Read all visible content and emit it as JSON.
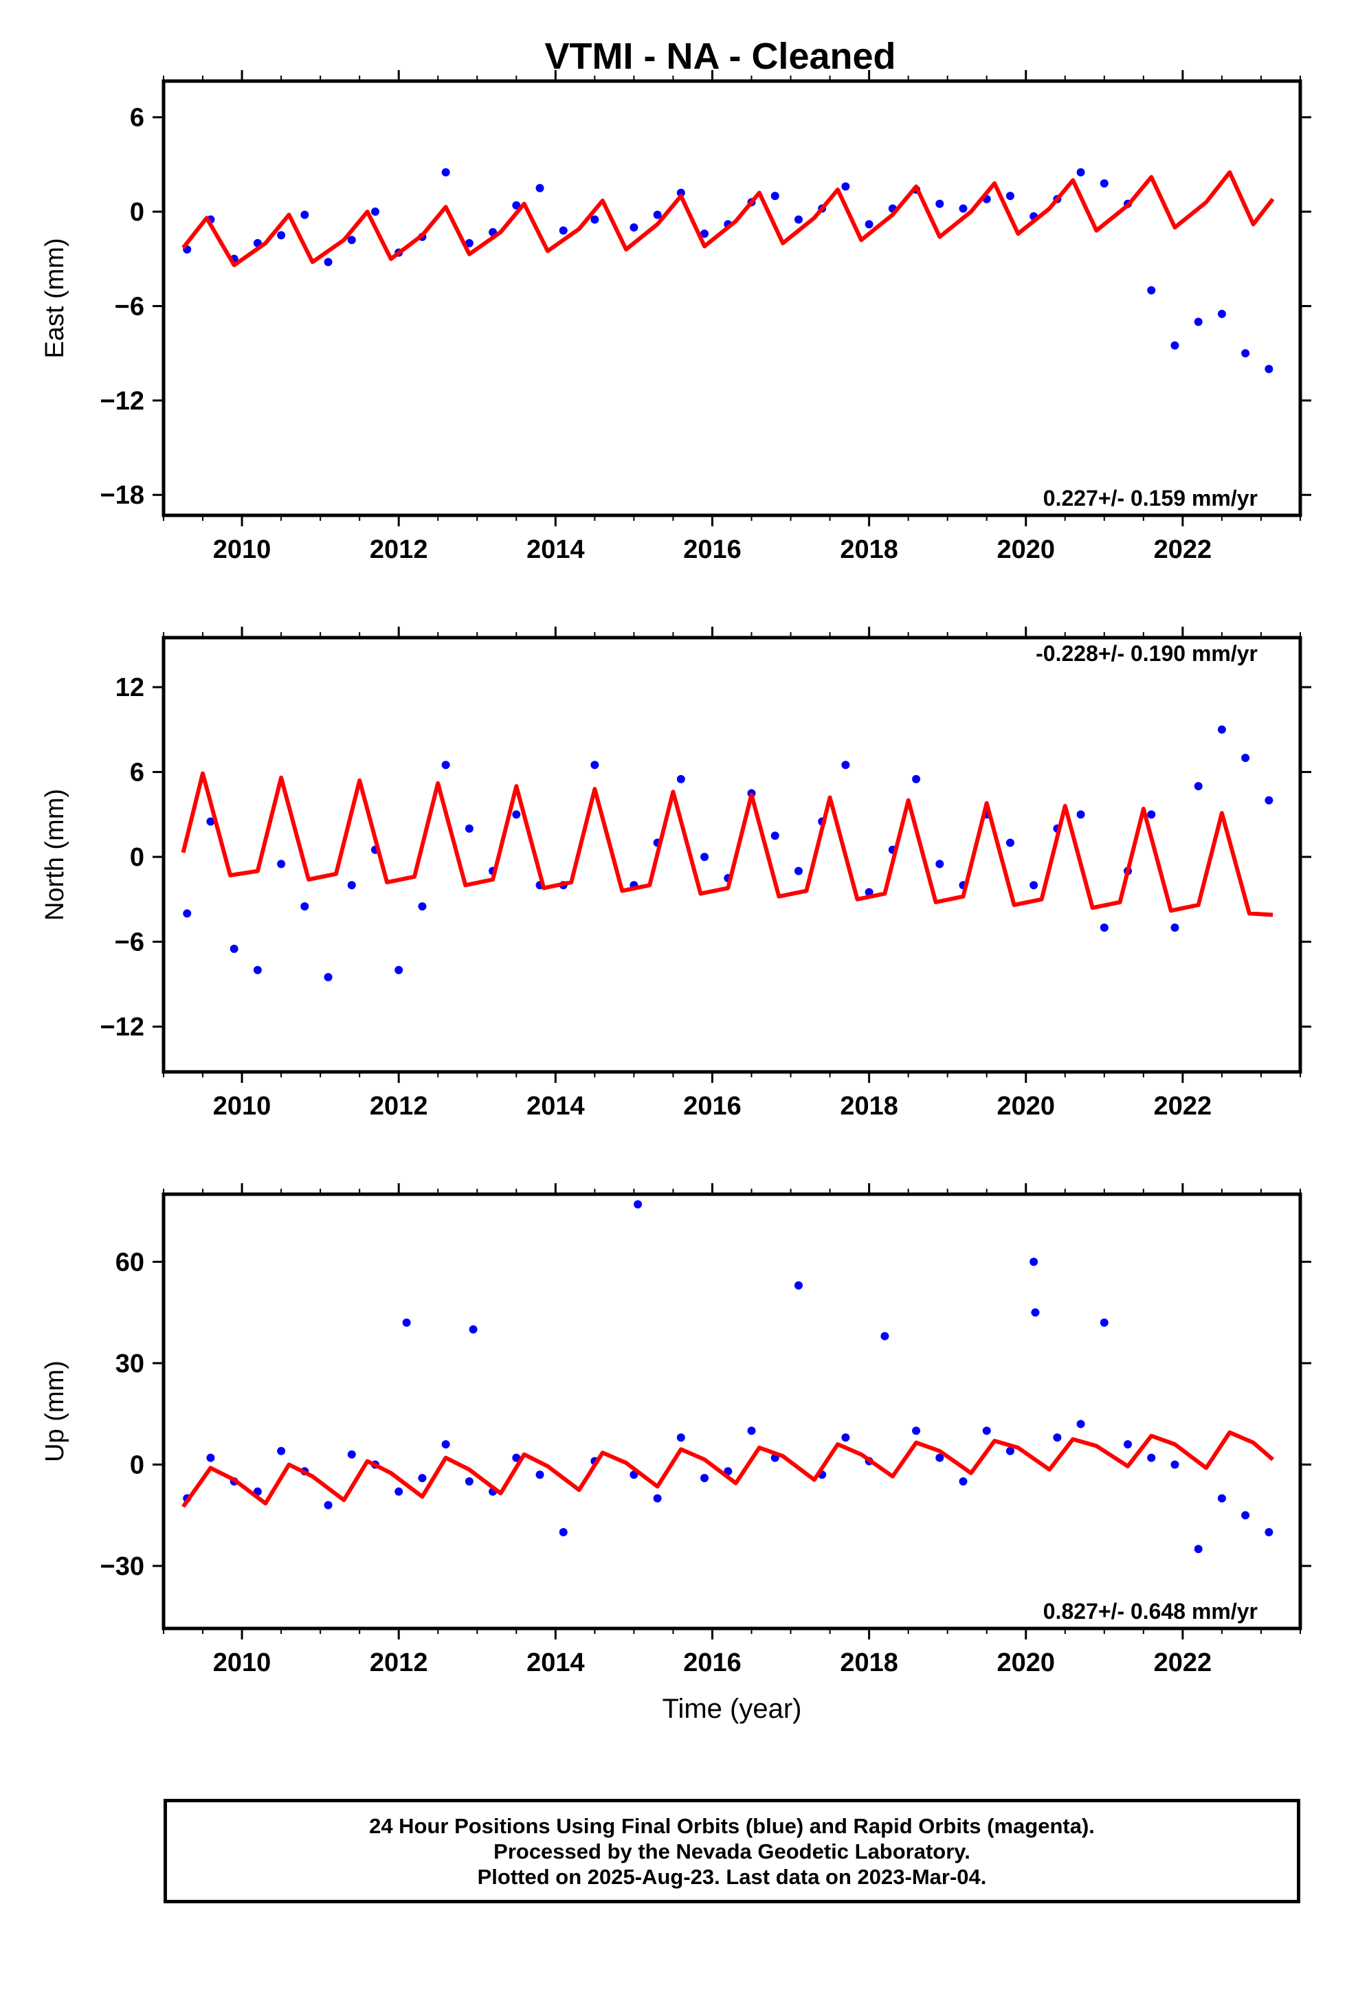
{
  "title": "VTMI  - NA - Cleaned",
  "xlabel": "Time (year)",
  "footer": {
    "line1": "24 Hour Positions Using Final Orbits (blue) and Rapid Orbits (magenta).",
    "line2": "Processed by the Nevada Geodetic Laboratory.",
    "line3": "Plotted on 2025-Aug-23. Last data on 2023-Mar-04."
  },
  "colors": {
    "points": "#0000ff",
    "model": "#ff0000",
    "axes": "#000000"
  },
  "chart_data": [
    {
      "type": "scatter",
      "ylabel": "East (mm)",
      "xlim": [
        2009.0,
        2023.5
      ],
      "ylim": [
        -19.3,
        8.3
      ],
      "xticks": [
        2010,
        2012,
        2014,
        2016,
        2018,
        2020,
        2022
      ],
      "yticks": [
        6,
        0,
        -6,
        -12,
        -18
      ],
      "ytick_labels": [
        "6",
        "0",
        "−6",
        "−12",
        "−18"
      ],
      "rate_label": "0.227+/- 0.159 mm/yr",
      "rate_position": "bottom-right",
      "series": [
        {
          "type": "scatter",
          "x": [
            2009.3,
            2009.6,
            2009.9,
            2010.2,
            2010.5,
            2010.8,
            2011.1,
            2011.4,
            2011.7,
            2012.0,
            2012.3,
            2012.6,
            2012.9,
            2013.2,
            2013.5,
            2013.8,
            2014.1,
            2014.5,
            2015.0,
            2015.3,
            2015.6,
            2015.9,
            2016.2,
            2016.5,
            2016.8,
            2017.1,
            2017.4,
            2017.7,
            2018.0,
            2018.3,
            2018.6,
            2018.9,
            2019.2,
            2019.5,
            2019.8,
            2020.1,
            2020.4,
            2020.7,
            2021.0,
            2021.3,
            2021.6,
            2021.9,
            2022.2,
            2022.5,
            2022.8,
            2023.1
          ],
          "y": [
            -2.4,
            -0.5,
            -3.0,
            -2.0,
            -1.5,
            -0.2,
            -3.2,
            -1.8,
            0.0,
            -2.6,
            -1.6,
            2.5,
            -2.0,
            -1.3,
            0.4,
            1.5,
            -1.2,
            -0.5,
            -1.0,
            -0.2,
            1.2,
            -1.4,
            -0.8,
            0.6,
            1.0,
            -0.5,
            0.2,
            1.6,
            -0.8,
            0.2,
            1.4,
            0.5,
            0.2,
            0.8,
            1.0,
            -0.3,
            0.8,
            2.5,
            1.8,
            0.5,
            -5.0,
            -8.5,
            -7.0,
            -6.5,
            -9.0,
            -10.0
          ]
        },
        {
          "type": "line",
          "x": [
            2009.25,
            2009.55,
            2009.9,
            2010.3,
            2010.6,
            2010.9,
            2011.3,
            2011.6,
            2011.9,
            2012.3,
            2012.6,
            2012.9,
            2013.3,
            2013.6,
            2013.9,
            2014.3,
            2014.6,
            2014.9,
            2015.3,
            2015.6,
            2015.9,
            2016.3,
            2016.6,
            2016.9,
            2017.3,
            2017.6,
            2017.9,
            2018.3,
            2018.6,
            2018.9,
            2019.3,
            2019.6,
            2019.9,
            2020.3,
            2020.6,
            2020.9,
            2021.3,
            2021.6,
            2021.9,
            2022.3,
            2022.6,
            2022.9,
            2023.15
          ],
          "y": [
            -2.3,
            -0.4,
            -3.4,
            -2.0,
            -0.2,
            -3.2,
            -1.8,
            0.0,
            -3.0,
            -1.5,
            0.3,
            -2.7,
            -1.3,
            0.5,
            -2.5,
            -1.1,
            0.7,
            -2.4,
            -0.8,
            1.0,
            -2.2,
            -0.6,
            1.2,
            -2.0,
            -0.4,
            1.4,
            -1.8,
            -0.2,
            1.6,
            -1.6,
            0.0,
            1.8,
            -1.4,
            0.2,
            2.0,
            -1.2,
            0.4,
            2.2,
            -1.0,
            0.6,
            2.5,
            -0.8,
            0.8
          ]
        }
      ]
    },
    {
      "type": "scatter",
      "ylabel": "North (mm)",
      "xlim": [
        2009.0,
        2023.5
      ],
      "ylim": [
        -15.2,
        15.5
      ],
      "xticks": [
        2010,
        2012,
        2014,
        2016,
        2018,
        2020,
        2022
      ],
      "yticks": [
        12,
        6,
        0,
        -6,
        -12
      ],
      "ytick_labels": [
        "12",
        "6",
        "0",
        "−6",
        "−12"
      ],
      "rate_label": "-0.228+/- 0.190 mm/yr",
      "rate_position": "top-right",
      "series": [
        {
          "type": "scatter",
          "x": [
            2009.3,
            2009.6,
            2009.9,
            2010.2,
            2010.5,
            2010.8,
            2011.1,
            2011.4,
            2011.7,
            2012.0,
            2012.3,
            2012.6,
            2012.9,
            2013.2,
            2013.5,
            2013.8,
            2014.1,
            2014.5,
            2015.0,
            2015.3,
            2015.6,
            2015.9,
            2016.2,
            2016.5,
            2016.8,
            2017.1,
            2017.4,
            2017.7,
            2018.0,
            2018.3,
            2018.6,
            2018.9,
            2019.2,
            2019.5,
            2019.8,
            2020.1,
            2020.4,
            2020.7,
            2021.0,
            2021.3,
            2021.6,
            2021.9,
            2022.2,
            2022.5,
            2022.8,
            2023.1
          ],
          "y": [
            -4.0,
            2.5,
            -6.5,
            -8.0,
            -0.5,
            -3.5,
            -8.5,
            -2.0,
            0.5,
            -8.0,
            -3.5,
            6.5,
            2.0,
            -1.0,
            3.0,
            -2.0,
            -2.0,
            6.5,
            -2.0,
            1.0,
            5.5,
            0.0,
            -1.5,
            4.5,
            1.5,
            -1.0,
            2.5,
            6.5,
            -2.5,
            0.5,
            5.5,
            -0.5,
            -2.0,
            3.0,
            1.0,
            -2.0,
            2.0,
            3.0,
            -5.0,
            -1.0,
            3.0,
            -5.0,
            5.0,
            9.0,
            7.0,
            4.0
          ]
        },
        {
          "type": "line",
          "x": [
            2009.25,
            2009.5,
            2009.85,
            2010.2,
            2010.5,
            2010.85,
            2011.2,
            2011.5,
            2011.85,
            2012.2,
            2012.5,
            2012.85,
            2013.2,
            2013.5,
            2013.85,
            2014.2,
            2014.5,
            2014.85,
            2015.2,
            2015.5,
            2015.85,
            2016.2,
            2016.5,
            2016.85,
            2017.2,
            2017.5,
            2017.85,
            2018.2,
            2018.5,
            2018.85,
            2019.2,
            2019.5,
            2019.85,
            2020.2,
            2020.5,
            2020.85,
            2021.2,
            2021.5,
            2021.85,
            2022.2,
            2022.5,
            2022.85,
            2023.15
          ],
          "y": [
            0.3,
            5.9,
            -1.3,
            -1.0,
            5.6,
            -1.6,
            -1.2,
            5.4,
            -1.8,
            -1.4,
            5.2,
            -2.0,
            -1.6,
            5.0,
            -2.2,
            -1.8,
            4.8,
            -2.4,
            -2.0,
            4.6,
            -2.6,
            -2.2,
            4.4,
            -2.8,
            -2.4,
            4.2,
            -3.0,
            -2.6,
            4.0,
            -3.2,
            -2.8,
            3.8,
            -3.4,
            -3.0,
            3.6,
            -3.6,
            -3.2,
            3.4,
            -3.8,
            -3.4,
            3.1,
            -4.0,
            -4.1
          ]
        }
      ]
    },
    {
      "type": "scatter",
      "ylabel": "Up (mm)",
      "xlim": [
        2009.0,
        2023.5
      ],
      "ylim": [
        -48.5,
        80.0
      ],
      "xticks": [
        2010,
        2012,
        2014,
        2016,
        2018,
        2020,
        2022
      ],
      "yticks": [
        60,
        30,
        0,
        -30
      ],
      "ytick_labels": [
        "60",
        "30",
        "0",
        "−30"
      ],
      "rate_label": "0.827+/- 0.648 mm/yr",
      "rate_position": "bottom-right",
      "series": [
        {
          "type": "scatter",
          "x": [
            2009.3,
            2009.6,
            2009.9,
            2010.2,
            2010.5,
            2010.8,
            2011.1,
            2011.4,
            2011.7,
            2012.0,
            2012.1,
            2012.3,
            2012.6,
            2012.9,
            2012.95,
            2013.2,
            2013.5,
            2013.8,
            2014.1,
            2014.5,
            2015.0,
            2015.05,
            2015.3,
            2015.6,
            2015.9,
            2016.2,
            2016.5,
            2016.8,
            2017.1,
            2017.4,
            2017.7,
            2018.0,
            2018.2,
            2018.6,
            2018.9,
            2019.2,
            2019.5,
            2019.8,
            2020.1,
            2020.12,
            2020.4,
            2020.7,
            2021.0,
            2021.3,
            2021.6,
            2021.9,
            2022.2,
            2022.5,
            2022.8,
            2023.1
          ],
          "y": [
            -10.0,
            2.0,
            -5.0,
            -8.0,
            4.0,
            -2.0,
            -12.0,
            3.0,
            0.0,
            -8.0,
            42.0,
            -4.0,
            6.0,
            -5.0,
            40.0,
            -8.0,
            2.0,
            -3.0,
            -20.0,
            1.0,
            -3.0,
            77.0,
            -10.0,
            8.0,
            -4.0,
            -2.0,
            10.0,
            2.0,
            53.0,
            -3.0,
            8.0,
            1.0,
            38.0,
            10.0,
            2.0,
            -5.0,
            10.0,
            4.0,
            60.0,
            45.0,
            8.0,
            12.0,
            42.0,
            6.0,
            2.0,
            0.0,
            -25.0,
            -10.0,
            -15.0,
            -20.0
          ]
        },
        {
          "type": "line",
          "x": [
            2009.25,
            2009.6,
            2009.9,
            2010.3,
            2010.6,
            2010.9,
            2011.3,
            2011.6,
            2011.9,
            2012.3,
            2012.6,
            2012.9,
            2013.3,
            2013.6,
            2013.9,
            2014.3,
            2014.6,
            2014.9,
            2015.3,
            2015.6,
            2015.9,
            2016.3,
            2016.6,
            2016.9,
            2017.3,
            2017.6,
            2017.9,
            2018.3,
            2018.6,
            2018.9,
            2019.3,
            2019.6,
            2019.9,
            2020.3,
            2020.6,
            2020.9,
            2021.3,
            2021.6,
            2021.9,
            2022.3,
            2022.6,
            2022.9,
            2023.15
          ],
          "y": [
            -12.5,
            -1.0,
            -4.5,
            -11.5,
            0.0,
            -3.5,
            -10.5,
            1.0,
            -2.5,
            -9.5,
            2.0,
            -1.5,
            -8.5,
            3.0,
            -0.5,
            -7.5,
            3.5,
            0.5,
            -6.5,
            4.5,
            1.5,
            -5.5,
            5.0,
            2.5,
            -4.5,
            6.0,
            3.0,
            -3.5,
            6.5,
            4.0,
            -2.5,
            7.0,
            5.0,
            -1.5,
            7.5,
            5.5,
            -0.5,
            8.5,
            6.0,
            -1.0,
            9.5,
            6.5,
            1.5
          ]
        }
      ]
    }
  ]
}
